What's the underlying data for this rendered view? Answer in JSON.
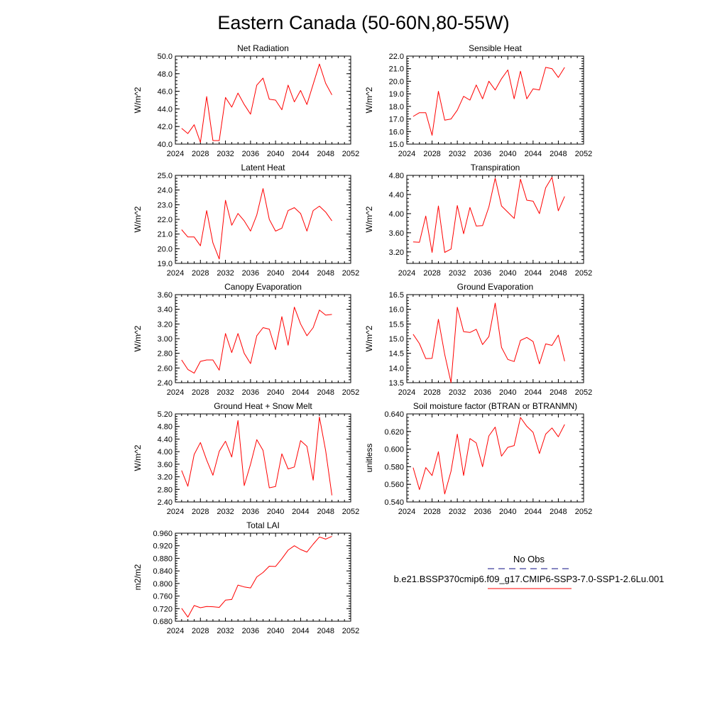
{
  "figure": {
    "title": "Eastern Canada (50-60N,80-55W)",
    "legend": {
      "obs_label": "No Obs",
      "obs_color": "#3d3d9e",
      "case_label": "b.e21.BSSP370cmip6.f09_g17.CMIP6-SSP3-7.0-SSP1-2.6Lu.001",
      "case_color": "#ff0000"
    }
  },
  "chart_data": [
    {
      "type": "line",
      "title": "Net Radiation",
      "ylabel": "W/m^2",
      "xlim": [
        2024,
        2052
      ],
      "ylim": [
        40.0,
        50.0
      ],
      "xticks": [
        "2024",
        "2028",
        "2032",
        "2036",
        "2040",
        "2044",
        "2048",
        "2052"
      ],
      "yticks": [
        "40.0",
        "42.0",
        "44.0",
        "46.0",
        "48.0",
        "50.0"
      ],
      "x": [
        2025,
        2026,
        2027,
        2028,
        2029,
        2030,
        2031,
        2032,
        2033,
        2034,
        2035,
        2036,
        2037,
        2038,
        2039,
        2040,
        2041,
        2042,
        2043,
        2044,
        2045,
        2046,
        2047,
        2048,
        2049
      ],
      "series": [
        {
          "color": "#ff0000",
          "values": [
            41.8,
            41.2,
            42.2,
            40.2,
            45.4,
            40.4,
            40.4,
            45.3,
            44.2,
            45.8,
            44.5,
            43.4,
            46.7,
            47.5,
            45.1,
            45.0,
            43.9,
            46.7,
            44.8,
            46.1,
            44.5,
            46.8,
            49.1,
            46.9,
            45.6
          ]
        }
      ]
    },
    {
      "type": "line",
      "title": "Sensible Heat",
      "ylabel": "W/m^2",
      "xlim": [
        2024,
        2052
      ],
      "ylim": [
        15.0,
        22.0
      ],
      "xticks": [
        "2024",
        "2028",
        "2032",
        "2036",
        "2040",
        "2044",
        "2048",
        "2052"
      ],
      "yticks": [
        "15.0",
        "16.0",
        "17.0",
        "18.0",
        "19.0",
        "20.0",
        "21.0",
        "22.0"
      ],
      "x": [
        2025,
        2026,
        2027,
        2028,
        2029,
        2030,
        2031,
        2032,
        2033,
        2034,
        2035,
        2036,
        2037,
        2038,
        2039,
        2040,
        2041,
        2042,
        2043,
        2044,
        2045,
        2046,
        2047,
        2048,
        2049
      ],
      "series": [
        {
          "color": "#ff0000",
          "values": [
            17.2,
            17.5,
            17.5,
            15.7,
            19.2,
            16.9,
            17.0,
            17.7,
            18.8,
            18.5,
            19.7,
            18.6,
            20.0,
            19.3,
            20.2,
            20.9,
            18.6,
            20.8,
            18.6,
            19.4,
            19.3,
            21.1,
            21.0,
            20.3,
            21.1
          ]
        }
      ]
    },
    {
      "type": "line",
      "title": "Latent Heat",
      "ylabel": "W/m^2",
      "xlim": [
        2024,
        2052
      ],
      "ylim": [
        19.0,
        25.0
      ],
      "xticks": [
        "2024",
        "2028",
        "2032",
        "2036",
        "2040",
        "2044",
        "2048",
        "2052"
      ],
      "yticks": [
        "19.0",
        "20.0",
        "21.0",
        "22.0",
        "23.0",
        "24.0",
        "25.0"
      ],
      "x": [
        2025,
        2026,
        2027,
        2028,
        2029,
        2030,
        2031,
        2032,
        2033,
        2034,
        2035,
        2036,
        2037,
        2038,
        2039,
        2040,
        2041,
        2042,
        2043,
        2044,
        2045,
        2046,
        2047,
        2048,
        2049
      ],
      "series": [
        {
          "color": "#ff0000",
          "values": [
            21.3,
            20.8,
            20.8,
            20.2,
            22.6,
            20.4,
            19.3,
            23.3,
            21.6,
            22.4,
            21.9,
            21.2,
            22.3,
            24.1,
            22.0,
            21.2,
            21.4,
            22.6,
            22.8,
            22.4,
            21.2,
            22.6,
            22.9,
            22.5,
            21.9
          ]
        }
      ]
    },
    {
      "type": "line",
      "title": "Transpiration",
      "ylabel": "W/m^2",
      "xlim": [
        2024,
        2052
      ],
      "ylim": [
        2.96,
        4.8
      ],
      "xticks": [
        "2024",
        "2028",
        "2032",
        "2036",
        "2040",
        "2044",
        "2048",
        "2052"
      ],
      "yticks": [
        "3.20",
        "3.60",
        "4.00",
        "4.40",
        "4.80"
      ],
      "x": [
        2025,
        2026,
        2027,
        2028,
        2029,
        2030,
        2031,
        2032,
        2033,
        2034,
        2035,
        2036,
        2037,
        2038,
        2039,
        2040,
        2041,
        2042,
        2043,
        2044,
        2045,
        2046,
        2047,
        2048,
        2049
      ],
      "series": [
        {
          "color": "#ff0000",
          "values": [
            3.41,
            3.4,
            3.95,
            3.19,
            4.16,
            3.19,
            3.26,
            4.17,
            3.58,
            4.13,
            3.74,
            3.75,
            4.14,
            4.74,
            4.16,
            4.03,
            3.9,
            4.72,
            4.28,
            4.26,
            4.0,
            4.54,
            4.76,
            4.06,
            4.36
          ]
        }
      ]
    },
    {
      "type": "line",
      "title": "Canopy Evaporation",
      "ylabel": "W/m^2",
      "xlim": [
        2024,
        2052
      ],
      "ylim": [
        2.4,
        3.6
      ],
      "xticks": [
        "2024",
        "2028",
        "2032",
        "2036",
        "2040",
        "2044",
        "2048",
        "2052"
      ],
      "yticks": [
        "2.40",
        "2.60",
        "2.80",
        "3.00",
        "3.20",
        "3.40",
        "3.60"
      ],
      "x": [
        2025,
        2026,
        2027,
        2028,
        2029,
        2030,
        2031,
        2032,
        2033,
        2034,
        2035,
        2036,
        2037,
        2038,
        2039,
        2040,
        2041,
        2042,
        2043,
        2044,
        2045,
        2046,
        2047,
        2048,
        2049
      ],
      "series": [
        {
          "color": "#ff0000",
          "values": [
            2.71,
            2.58,
            2.53,
            2.69,
            2.71,
            2.71,
            2.57,
            3.07,
            2.81,
            3.07,
            2.8,
            2.66,
            3.04,
            3.15,
            3.13,
            2.85,
            3.3,
            2.91,
            3.43,
            3.2,
            3.04,
            3.15,
            3.39,
            3.32,
            3.33
          ]
        }
      ]
    },
    {
      "type": "line",
      "title": "Ground Evaporation",
      "ylabel": "W/m^2",
      "xlim": [
        2024,
        2052
      ],
      "ylim": [
        13.5,
        16.5
      ],
      "xticks": [
        "2024",
        "2028",
        "2032",
        "2036",
        "2040",
        "2044",
        "2048",
        "2052"
      ],
      "yticks": [
        "13.5",
        "14.0",
        "14.5",
        "15.0",
        "15.5",
        "16.0",
        "16.5"
      ],
      "x": [
        2025,
        2026,
        2027,
        2028,
        2029,
        2030,
        2031,
        2032,
        2033,
        2034,
        2035,
        2036,
        2037,
        2038,
        2039,
        2040,
        2041,
        2042,
        2043,
        2044,
        2045,
        2046,
        2047,
        2048,
        2049
      ],
      "series": [
        {
          "color": "#ff0000",
          "values": [
            15.15,
            14.83,
            14.32,
            14.33,
            15.66,
            14.46,
            13.5,
            16.07,
            15.24,
            15.21,
            15.32,
            14.8,
            15.07,
            16.21,
            14.7,
            14.29,
            14.22,
            14.94,
            15.04,
            14.9,
            14.14,
            14.82,
            14.77,
            15.12,
            14.23
          ]
        }
      ]
    },
    {
      "type": "line",
      "title": "Ground Heat + Snow Melt",
      "ylabel": "W/m^2",
      "xlim": [
        2024,
        2052
      ],
      "ylim": [
        2.4,
        5.2
      ],
      "xticks": [
        "2024",
        "2028",
        "2032",
        "2036",
        "2040",
        "2044",
        "2048",
        "2052"
      ],
      "yticks": [
        "2.40",
        "2.80",
        "3.20",
        "3.60",
        "4.00",
        "4.40",
        "4.80",
        "5.20"
      ],
      "x": [
        2025,
        2026,
        2027,
        2028,
        2029,
        2030,
        2031,
        2032,
        2033,
        2034,
        2035,
        2036,
        2037,
        2038,
        2039,
        2040,
        2041,
        2042,
        2043,
        2044,
        2045,
        2046,
        2047,
        2048,
        2049
      ],
      "series": [
        {
          "color": "#ff0000",
          "values": [
            3.4,
            2.9,
            3.91,
            4.29,
            3.73,
            3.25,
            4.01,
            4.33,
            3.83,
            4.99,
            2.92,
            3.6,
            4.38,
            4.04,
            2.85,
            2.89,
            3.93,
            3.45,
            3.51,
            4.35,
            4.17,
            3.09,
            5.1,
            4.03,
            2.61
          ]
        }
      ]
    },
    {
      "type": "line",
      "title": "Soil moisture factor (BTRAN or BTRANMN)",
      "ylabel": "unitless",
      "xlim": [
        2024,
        2052
      ],
      "ylim": [
        0.54,
        0.64
      ],
      "xticks": [
        "2024",
        "2028",
        "2032",
        "2036",
        "2040",
        "2044",
        "2048",
        "2052"
      ],
      "yticks": [
        "0.540",
        "0.560",
        "0.580",
        "0.600",
        "0.620",
        "0.640"
      ],
      "x": [
        2025,
        2026,
        2027,
        2028,
        2029,
        2030,
        2031,
        2032,
        2033,
        2034,
        2035,
        2036,
        2037,
        2038,
        2039,
        2040,
        2041,
        2042,
        2043,
        2044,
        2045,
        2046,
        2047,
        2048,
        2049
      ],
      "series": [
        {
          "color": "#ff0000",
          "values": [
            0.579,
            0.554,
            0.579,
            0.57,
            0.597,
            0.549,
            0.575,
            0.617,
            0.57,
            0.612,
            0.607,
            0.58,
            0.615,
            0.625,
            0.592,
            0.602,
            0.604,
            0.636,
            0.626,
            0.619,
            0.595,
            0.617,
            0.624,
            0.614,
            0.628
          ]
        }
      ]
    },
    {
      "type": "line",
      "title": "Total LAI",
      "ylabel": "m2/m2",
      "xlim": [
        2024,
        2052
      ],
      "ylim": [
        0.68,
        0.96
      ],
      "xticks": [
        "2024",
        "2028",
        "2032",
        "2036",
        "2040",
        "2044",
        "2048",
        "2052"
      ],
      "yticks": [
        "0.680",
        "0.720",
        "0.760",
        "0.800",
        "0.840",
        "0.880",
        "0.920",
        "0.960"
      ],
      "x": [
        2025,
        2026,
        2027,
        2028,
        2029,
        2030,
        2031,
        2032,
        2033,
        2034,
        2035,
        2036,
        2037,
        2038,
        2039,
        2040,
        2041,
        2042,
        2043,
        2044,
        2045,
        2046,
        2047,
        2048,
        2049
      ],
      "series": [
        {
          "color": "#ff0000",
          "values": [
            0.721,
            0.693,
            0.73,
            0.723,
            0.727,
            0.726,
            0.724,
            0.747,
            0.749,
            0.795,
            0.789,
            0.786,
            0.821,
            0.835,
            0.855,
            0.854,
            0.879,
            0.906,
            0.92,
            0.908,
            0.9,
            0.925,
            0.948,
            0.941,
            0.95
          ]
        }
      ]
    }
  ]
}
